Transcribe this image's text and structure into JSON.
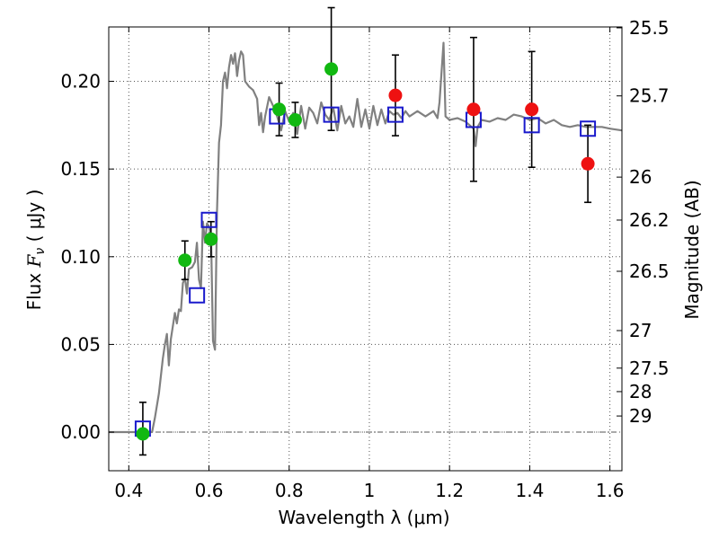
{
  "chart_data": {
    "type": "scatter",
    "xlabel": "Wavelength  λ (μm)",
    "ylabel_text": "Flux ",
    "ylabel_symbol": "F",
    "ylabel_symbol_sub": "ν",
    "ylabel_unit": "  ( μJy )",
    "y2label": "Magnitude (AB)",
    "xlim": [
      0.35,
      1.63
    ],
    "ylim": [
      -0.022,
      0.231
    ],
    "grid": true,
    "x_ticks": [
      0.4,
      0.6,
      0.8,
      1.0,
      1.2,
      1.4,
      1.6
    ],
    "x_tick_labels": [
      "0.4",
      "0.6",
      "0.8",
      "1",
      "1.2",
      "1.4",
      "1.6"
    ],
    "y_ticks": [
      0.0,
      0.05,
      0.1,
      0.15,
      0.2
    ],
    "y_tick_labels": [
      "0.00",
      "0.05",
      "0.10",
      "0.15",
      "0.20"
    ],
    "y2_ticks": [
      {
        "label": "25.5",
        "flux": 0.2305
      },
      {
        "label": "25.7",
        "flux": 0.1917
      },
      {
        "label": "26",
        "flux": 0.1454
      },
      {
        "label": "26.2",
        "flux": 0.1209
      },
      {
        "label": "26.5",
        "flux": 0.0917
      },
      {
        "label": "27",
        "flux": 0.0579
      },
      {
        "label": "27.5",
        "flux": 0.0365
      },
      {
        "label": "28",
        "flux": 0.0231
      },
      {
        "label": "29",
        "flux": 0.0092
      }
    ],
    "colors": {
      "model": "#808080",
      "green": "#11b811",
      "red": "#ee1111",
      "blue_squares": "#1a1acc",
      "errorbars": "#000000",
      "zero_line": "#555555"
    },
    "series": [
      {
        "role": "model_spectrum",
        "points": [
          [
            0.35,
            0.0
          ],
          [
            0.44,
            0.0
          ],
          [
            0.458,
            0.0
          ],
          [
            0.465,
            0.008
          ],
          [
            0.475,
            0.022
          ],
          [
            0.485,
            0.042
          ],
          [
            0.49,
            0.05
          ],
          [
            0.495,
            0.056
          ],
          [
            0.5,
            0.038
          ],
          [
            0.505,
            0.053
          ],
          [
            0.515,
            0.068
          ],
          [
            0.52,
            0.062
          ],
          [
            0.525,
            0.07
          ],
          [
            0.53,
            0.069
          ],
          [
            0.535,
            0.085
          ],
          [
            0.54,
            0.088
          ],
          [
            0.545,
            0.079
          ],
          [
            0.55,
            0.093
          ],
          [
            0.558,
            0.094
          ],
          [
            0.565,
            0.097
          ],
          [
            0.57,
            0.108
          ],
          [
            0.575,
            0.087
          ],
          [
            0.58,
            0.082
          ],
          [
            0.585,
            0.12
          ],
          [
            0.59,
            0.108
          ],
          [
            0.595,
            0.119
          ],
          [
            0.6,
            0.117
          ],
          [
            0.605,
            0.112
          ],
          [
            0.61,
            0.052
          ],
          [
            0.615,
            0.047
          ],
          [
            0.62,
            0.125
          ],
          [
            0.625,
            0.165
          ],
          [
            0.63,
            0.175
          ],
          [
            0.635,
            0.2
          ],
          [
            0.64,
            0.205
          ],
          [
            0.645,
            0.196
          ],
          [
            0.65,
            0.208
          ],
          [
            0.655,
            0.215
          ],
          [
            0.66,
            0.21
          ],
          [
            0.665,
            0.216
          ],
          [
            0.67,
            0.203
          ],
          [
            0.675,
            0.212
          ],
          [
            0.68,
            0.217
          ],
          [
            0.685,
            0.215
          ],
          [
            0.69,
            0.2
          ],
          [
            0.7,
            0.197
          ],
          [
            0.71,
            0.195
          ],
          [
            0.72,
            0.19
          ],
          [
            0.725,
            0.175
          ],
          [
            0.73,
            0.182
          ],
          [
            0.735,
            0.171
          ],
          [
            0.74,
            0.18
          ],
          [
            0.75,
            0.191
          ],
          [
            0.76,
            0.186
          ],
          [
            0.77,
            0.18
          ],
          [
            0.78,
            0.172
          ],
          [
            0.79,
            0.183
          ],
          [
            0.8,
            0.177
          ],
          [
            0.81,
            0.182
          ],
          [
            0.82,
            0.17
          ],
          [
            0.83,
            0.186
          ],
          [
            0.84,
            0.173
          ],
          [
            0.85,
            0.185
          ],
          [
            0.86,
            0.182
          ],
          [
            0.87,
            0.176
          ],
          [
            0.88,
            0.188
          ],
          [
            0.89,
            0.181
          ],
          [
            0.9,
            0.178
          ],
          [
            0.91,
            0.185
          ],
          [
            0.92,
            0.172
          ],
          [
            0.93,
            0.186
          ],
          [
            0.94,
            0.176
          ],
          [
            0.95,
            0.18
          ],
          [
            0.96,
            0.174
          ],
          [
            0.97,
            0.19
          ],
          [
            0.98,
            0.174
          ],
          [
            0.99,
            0.184
          ],
          [
            1.0,
            0.173
          ],
          [
            1.01,
            0.186
          ],
          [
            1.02,
            0.175
          ],
          [
            1.03,
            0.184
          ],
          [
            1.04,
            0.176
          ],
          [
            1.05,
            0.183
          ],
          [
            1.06,
            0.181
          ],
          [
            1.07,
            0.182
          ],
          [
            1.08,
            0.179
          ],
          [
            1.09,
            0.183
          ],
          [
            1.1,
            0.18
          ],
          [
            1.12,
            0.183
          ],
          [
            1.14,
            0.18
          ],
          [
            1.16,
            0.183
          ],
          [
            1.17,
            0.179
          ],
          [
            1.175,
            0.188
          ],
          [
            1.185,
            0.222
          ],
          [
            1.19,
            0.18
          ],
          [
            1.2,
            0.178
          ],
          [
            1.22,
            0.179
          ],
          [
            1.24,
            0.177
          ],
          [
            1.26,
            0.173
          ],
          [
            1.265,
            0.163
          ],
          [
            1.27,
            0.174
          ],
          [
            1.28,
            0.178
          ],
          [
            1.3,
            0.177
          ],
          [
            1.32,
            0.179
          ],
          [
            1.34,
            0.178
          ],
          [
            1.36,
            0.181
          ],
          [
            1.38,
            0.18
          ],
          [
            1.4,
            0.178
          ],
          [
            1.42,
            0.179
          ],
          [
            1.44,
            0.176
          ],
          [
            1.46,
            0.178
          ],
          [
            1.48,
            0.175
          ],
          [
            1.5,
            0.174
          ],
          [
            1.52,
            0.175
          ],
          [
            1.54,
            0.174
          ],
          [
            1.56,
            0.174
          ],
          [
            1.58,
            0.174
          ],
          [
            1.6,
            0.173
          ],
          [
            1.63,
            0.172
          ]
        ]
      },
      {
        "role": "model_band_flux_squares",
        "points": [
          [
            0.435,
            0.002
          ],
          [
            0.57,
            0.078
          ],
          [
            0.6,
            0.121
          ],
          [
            0.77,
            0.18
          ],
          [
            0.905,
            0.181
          ],
          [
            1.065,
            0.181
          ],
          [
            1.26,
            0.178
          ],
          [
            1.405,
            0.175
          ],
          [
            1.545,
            0.173
          ]
        ]
      },
      {
        "role": "observed_green",
        "points": [
          {
            "x": 0.435,
            "y": -0.001
          },
          {
            "x": 0.54,
            "y": 0.098,
            "err": 0.011
          },
          {
            "x": 0.605,
            "y": 0.11,
            "err": 0.01
          },
          {
            "x": 0.775,
            "y": 0.184,
            "err": 0.015
          },
          {
            "x": 0.815,
            "y": 0.178,
            "err": 0.01
          },
          {
            "x": 0.905,
            "y": 0.207,
            "err": 0.035
          }
        ]
      },
      {
        "role": "observed_red",
        "points": [
          {
            "x": 1.065,
            "y": 0.192,
            "err": 0.023
          },
          {
            "x": 1.26,
            "y": 0.184,
            "err": 0.041
          },
          {
            "x": 1.405,
            "y": 0.184,
            "err": 0.033
          },
          {
            "x": 1.545,
            "y": 0.153,
            "err": 0.022
          }
        ]
      },
      {
        "role": "errorbars_on_squares",
        "points": [
          {
            "x": 0.435,
            "y": 0.002,
            "err": 0.015
          }
        ]
      }
    ]
  }
}
